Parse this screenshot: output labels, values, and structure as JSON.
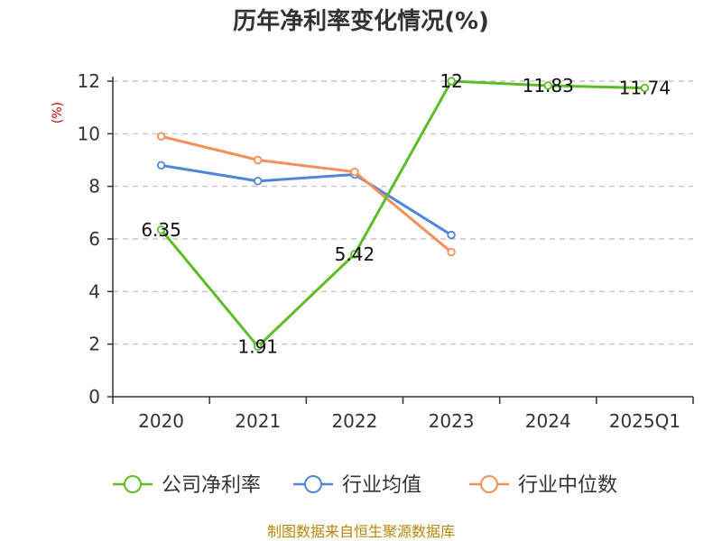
{
  "chart_data": {
    "type": "line",
    "title": "历年净利率变化情况(%)",
    "ylabel": "(%)",
    "categories": [
      "2020",
      "2021",
      "2022",
      "2023",
      "2024",
      "2025Q1"
    ],
    "ylim": [
      0,
      12
    ],
    "yticks": [
      0,
      2,
      4,
      6,
      8,
      10,
      12
    ],
    "grid": true,
    "legend_position": "bottom",
    "series": [
      {
        "name": "公司净利率",
        "color": "#5cbd27",
        "values": [
          6.35,
          1.91,
          5.42,
          12,
          11.83,
          11.74
        ],
        "labels": [
          "6.35",
          "1.91",
          "5.42",
          "12",
          "11.83",
          "11.74"
        ]
      },
      {
        "name": "行业均值",
        "color": "#4f86d9",
        "values": [
          8.8,
          8.2,
          8.45,
          6.15,
          null,
          null
        ],
        "labels": null
      },
      {
        "name": "行业中位数",
        "color": "#f5905a",
        "values": [
          9.9,
          9.0,
          8.55,
          5.5,
          null,
          null
        ],
        "labels": null
      }
    ]
  },
  "source": "制图数据来自恒生聚源数据库"
}
